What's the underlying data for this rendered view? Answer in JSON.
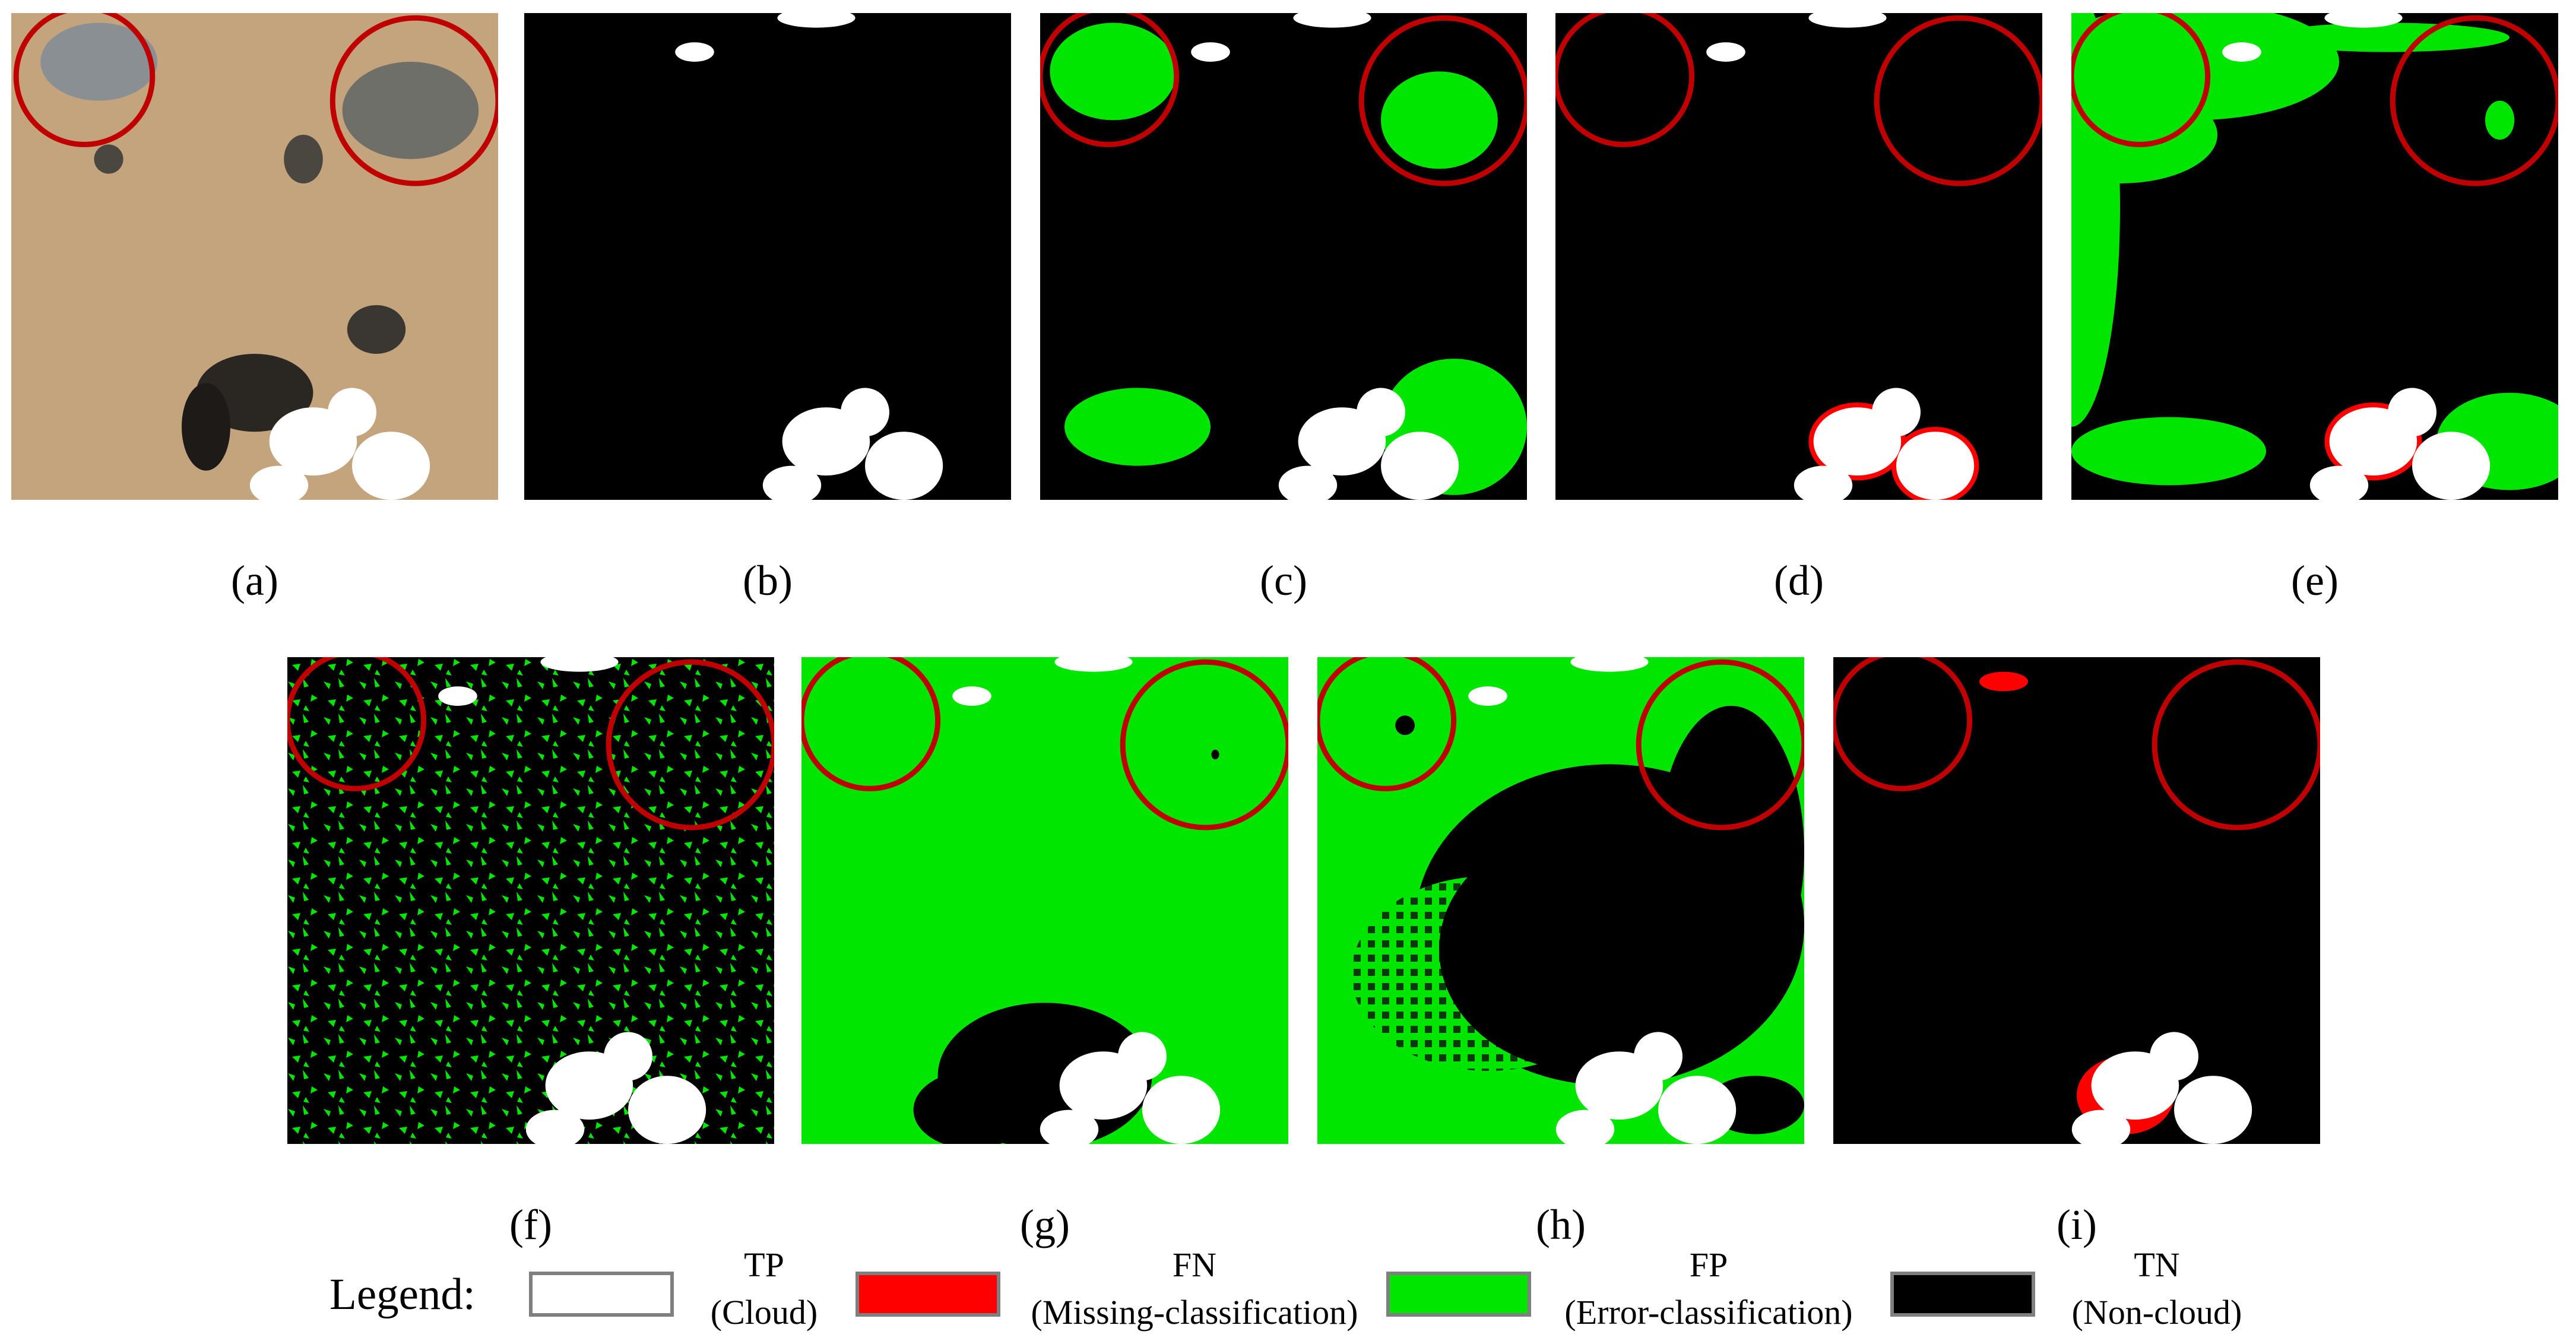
{
  "panels": [
    {
      "label": "(a)"
    },
    {
      "label": "(b)"
    },
    {
      "label": "(c)"
    },
    {
      "label": "(d)"
    },
    {
      "label": "(e)"
    },
    {
      "label": "(f)"
    },
    {
      "label": "(g)"
    },
    {
      "label": "(h)"
    },
    {
      "label": "(i)"
    }
  ],
  "legend": {
    "title": "Legend:",
    "items": [
      {
        "code": "TP",
        "meaning": "(Cloud)"
      },
      {
        "code": "FN",
        "meaning": "(Missing-classification)"
      },
      {
        "code": "FP",
        "meaning": "(Error-classification)"
      },
      {
        "code": "TN",
        "meaning": "(Non-cloud)"
      }
    ]
  }
}
